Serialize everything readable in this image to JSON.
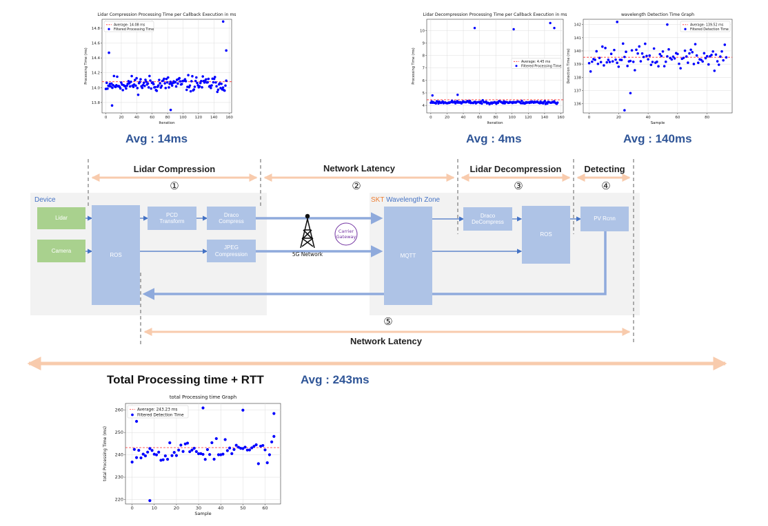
{
  "charts": [
    {
      "id": "c1",
      "type": "scatter",
      "title": "Lidar Compression Processing Time per Callback Execution in ms",
      "xlabel": "Iteration",
      "ylabel": "Processing Time (ms)",
      "xlim": [
        -5,
        163
      ],
      "ylim": [
        13.66,
        14.92
      ],
      "xticks": [
        0,
        20,
        40,
        60,
        80,
        100,
        120,
        140,
        160
      ],
      "yticks": [
        13.8,
        14.0,
        14.2,
        14.4,
        14.6,
        14.8
      ],
      "ytick_labels": [
        "13.8",
        "14.0",
        "14.2",
        "14.4",
        "14.6",
        "14.8"
      ],
      "average": 14.08,
      "legend": {
        "position": "upper-left",
        "avg_label": "Average: 14.08 ms",
        "points_label": "Filtered Processing Time"
      },
      "grid": true,
      "series": [
        {
          "name": "Filtered Processing Time",
          "seed": 11,
          "x_start": 0,
          "x_end": 156,
          "count": 150,
          "center": 14.05,
          "spread": 0.16,
          "outliers": [
            [
              152,
              14.89
            ],
            [
              4,
              14.47
            ],
            [
              156,
              14.5
            ],
            [
              84,
              13.7
            ],
            [
              8,
              13.76
            ]
          ]
        }
      ]
    },
    {
      "id": "c2",
      "type": "scatter",
      "title": "Lidar Decompression Processing Time per Callback Execution in ms",
      "xlabel": "Iteration",
      "ylabel": "Processing Time (ms)",
      "xlim": [
        -5,
        163
      ],
      "ylim": [
        3.4,
        10.9
      ],
      "xticks": [
        0,
        20,
        40,
        60,
        80,
        100,
        120,
        140,
        160
      ],
      "yticks": [
        4,
        5,
        6,
        7,
        8,
        9,
        10
      ],
      "ytick_labels": [
        "4",
        "5",
        "6",
        "7",
        "8",
        "9",
        "10"
      ],
      "average": 4.45,
      "legend": {
        "position": "center-right",
        "avg_label": "Average: 4.45 ms",
        "points_label": "Filtered Processing Time"
      },
      "grid": true,
      "series": [
        {
          "name": "Filtered Processing Time",
          "seed": 23,
          "x_start": 0,
          "x_end": 156,
          "count": 150,
          "center": 4.25,
          "spread": 0.18,
          "outliers": [
            [
              54,
              10.2
            ],
            [
              102,
              10.1
            ],
            [
              147,
              10.6
            ],
            [
              152,
              10.2
            ],
            [
              2,
              4.8
            ],
            [
              33,
              4.85
            ]
          ]
        }
      ]
    },
    {
      "id": "c3",
      "type": "scatter",
      "title": "wavelength Detection Time Graph",
      "xlabel": "Sample",
      "ylabel": "Detection Time (ms)",
      "xlim": [
        -4,
        97
      ],
      "ylim": [
        135.3,
        142.4
      ],
      "xticks": [
        0,
        20,
        40,
        60,
        80
      ],
      "yticks": [
        136,
        137,
        138,
        139,
        140,
        141,
        142
      ],
      "ytick_labels": [
        "136",
        "137",
        "138",
        "139",
        "140",
        "141",
        "142"
      ],
      "average": 139.52,
      "legend": {
        "position": "upper-right",
        "avg_label": "Average: 139.52 ms",
        "points_label": "Filtered Detection Time"
      },
      "grid": true,
      "series": [
        {
          "name": "Filtered Detection Time",
          "seed": 37,
          "x_start": 0,
          "x_end": 93,
          "count": 94,
          "center": 139.5,
          "spread": 1.4,
          "outliers": [
            [
              19,
              142.2
            ],
            [
              24,
              135.5
            ],
            [
              28,
              136.8
            ],
            [
              53,
              142.0
            ]
          ]
        }
      ]
    },
    {
      "id": "c4",
      "type": "scatter",
      "title": "total Processing time Graph",
      "xlabel": "Sample",
      "ylabel": "total Processing Time (ms)",
      "xlim": [
        -3,
        67
      ],
      "ylim": [
        218,
        263
      ],
      "xticks": [
        0,
        10,
        20,
        30,
        40,
        50,
        60
      ],
      "yticks": [
        220,
        230,
        240,
        250,
        260
      ],
      "ytick_labels": [
        "220",
        "230",
        "240",
        "250",
        "260"
      ],
      "average": 243.23,
      "legend": {
        "position": "upper-left",
        "avg_label": "Average: 243.23 ms",
        "points_label": "Filtered Detection Time"
      },
      "grid": true,
      "series": [
        {
          "name": "Filtered Detection Time",
          "seed": 53,
          "x_start": 0,
          "x_end": 64,
          "count": 65,
          "center": 242,
          "spread": 7.5,
          "outliers": [
            [
              32,
              261
            ],
            [
              8,
              219.5
            ],
            [
              2,
              255
            ],
            [
              50,
              260
            ],
            [
              64,
              258.5
            ]
          ]
        }
      ]
    }
  ],
  "averages": {
    "a1": "Avg : 14ms",
    "a2": "Avg : 4ms",
    "a3": "Avg : 140ms",
    "a4": "Avg : 243ms"
  },
  "phases": {
    "p1": {
      "label": "Lidar Compression",
      "num": "①"
    },
    "p2": {
      "label": "Network Latency",
      "num": "②"
    },
    "p3": {
      "label": "Lidar Decompression",
      "num": "③"
    },
    "p4": {
      "label": "Detecting",
      "num": "④"
    },
    "p5": {
      "label": "Network Latency",
      "num": "⑤"
    }
  },
  "zones": {
    "device": "Device",
    "skt": "SKT",
    "wavelength": "Wavelength Zone"
  },
  "boxes": {
    "lidar": "Lidar",
    "camera": "Camera",
    "ros1": "ROS",
    "pcd": "PCD\nTransform",
    "draco": "Draco\nCompress",
    "jpeg": "JPEG\nCompression",
    "mqtt": "MQTT",
    "decompress": "Draco\nDeCompress",
    "ros2": "ROS",
    "pvrcnn": "PV Rcnn"
  },
  "network": {
    "label": "5G Network",
    "gateway": "Carrier\nGateway"
  },
  "total": {
    "label": "Total Processing time + RTT"
  },
  "colors": {
    "accent": "#2F5597",
    "arrow": "#F8CBAD",
    "flow": "#8FAADC",
    "zone": "#F2F2F2",
    "box": "#AEC3E6",
    "green": "#A9D18E",
    "skt": "#ED7D31",
    "gateway": "#7030A0"
  }
}
